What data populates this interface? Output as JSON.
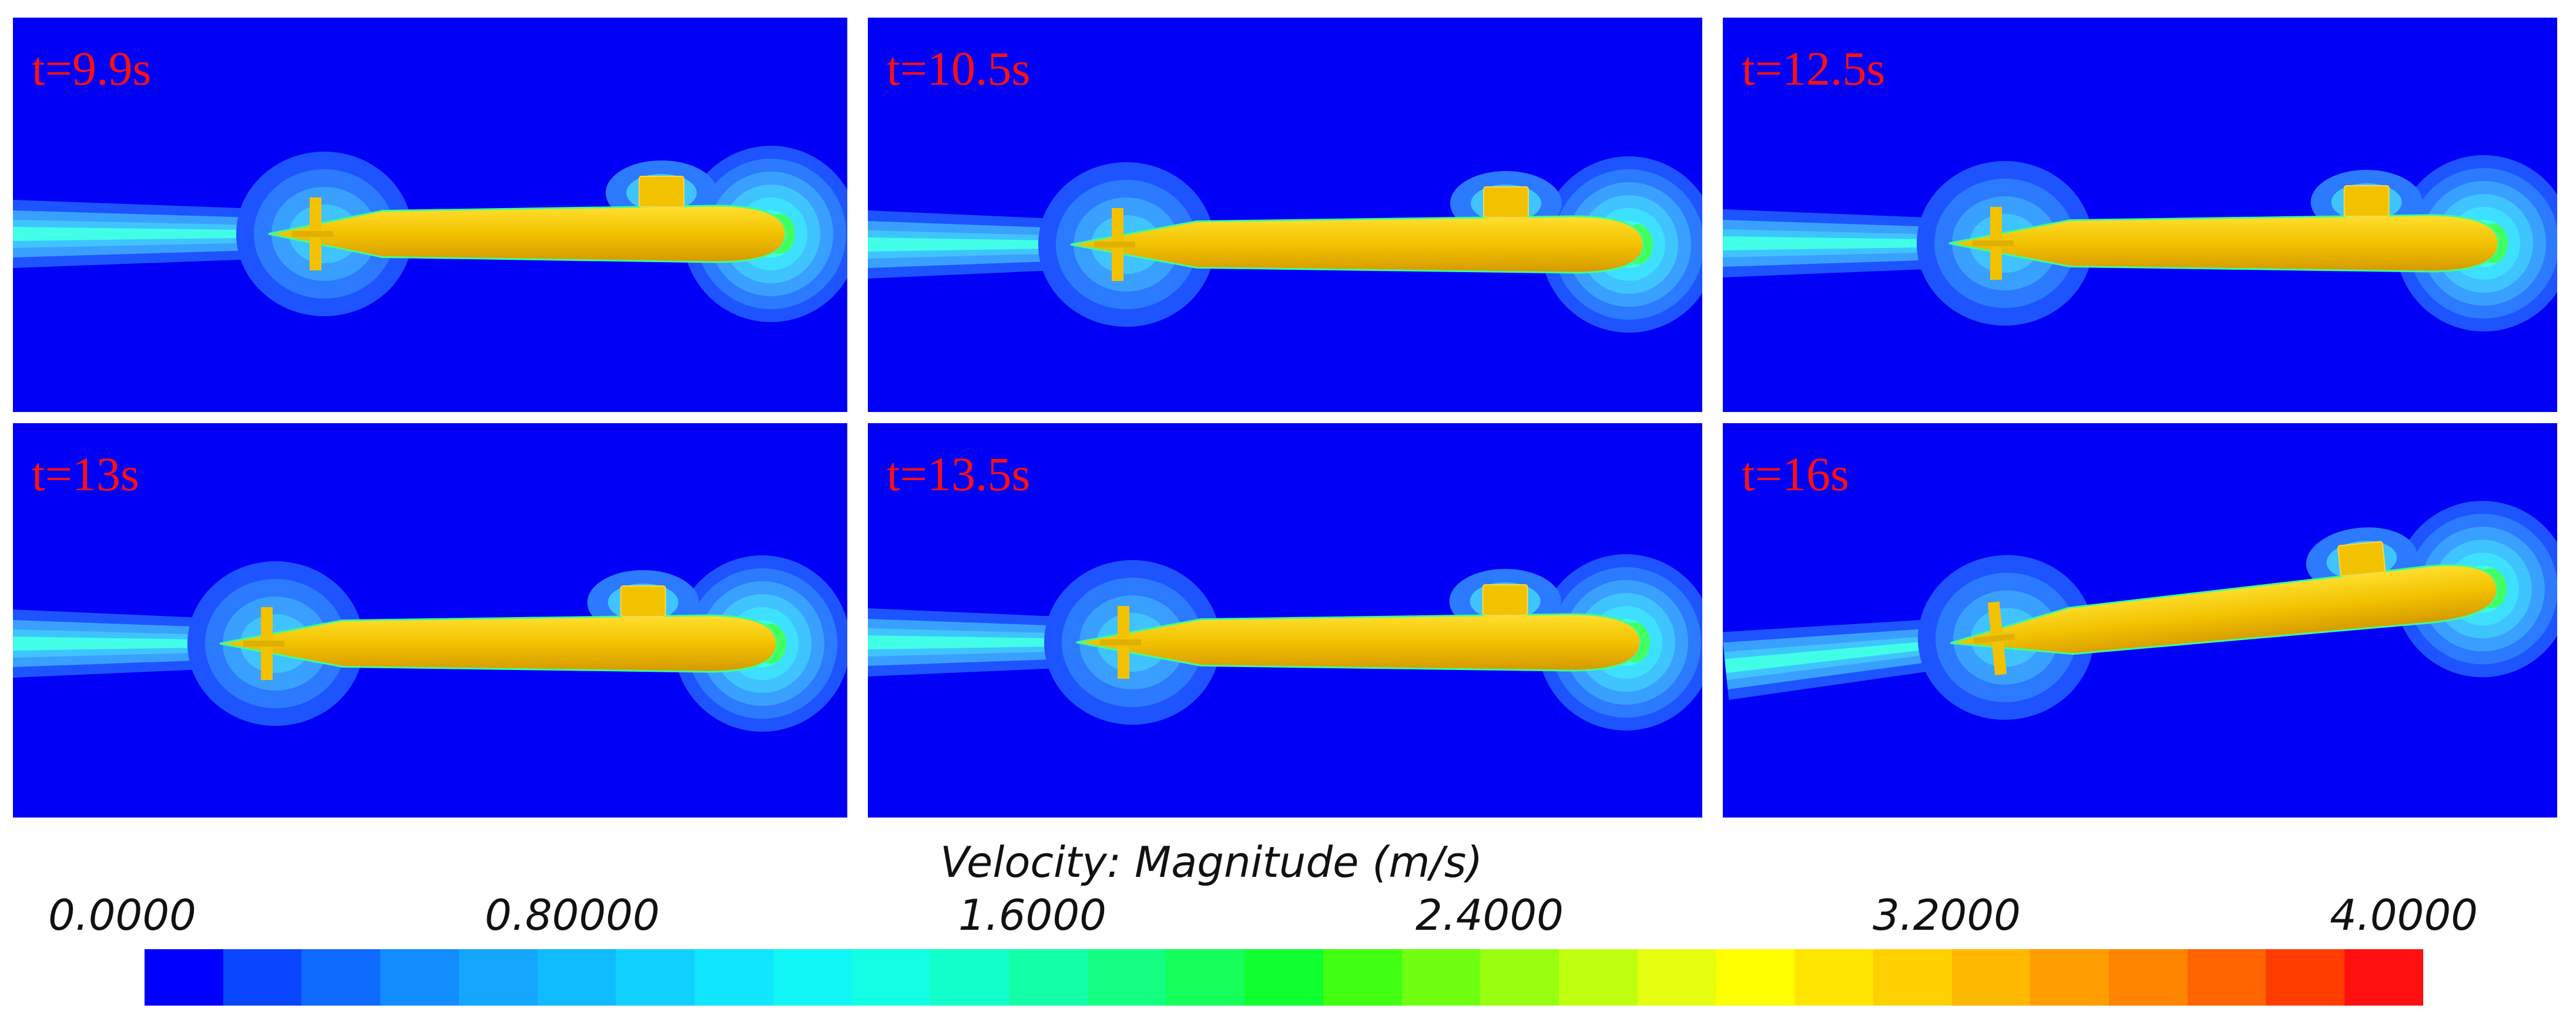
{
  "panels": [
    {
      "id": "p1",
      "time_label": "t=9.9s"
    },
    {
      "id": "p2",
      "time_label": "t=10.5s"
    },
    {
      "id": "p3",
      "time_label": "t=12.5s"
    },
    {
      "id": "p4",
      "time_label": "t=13s"
    },
    {
      "id": "p5",
      "time_label": "t=13.5s"
    },
    {
      "id": "p6",
      "time_label": "t=16s"
    }
  ],
  "colorbar": {
    "title": "Velocity: Magnitude (m/s)",
    "ticks": [
      "0.0000",
      "0.80000",
      "1.6000",
      "2.4000",
      "3.2000",
      "4.0000"
    ],
    "min": 0,
    "max": 4,
    "colors": [
      "#0000ff",
      "#0a46ff",
      "#0f6aff",
      "#128cff",
      "#14a6ff",
      "#10bcff",
      "#10d0ff",
      "#10e6ff",
      "#10f6f6",
      "#12ffe6",
      "#12ffcc",
      "#12ffa8",
      "#14ff82",
      "#14ff5a",
      "#10ff30",
      "#40ff10",
      "#70ff10",
      "#98ff10",
      "#c0ff10",
      "#e6ff10",
      "#ffff00",
      "#ffe600",
      "#ffd000",
      "#ffb800",
      "#ff9e00",
      "#ff8400",
      "#ff6400",
      "#ff3c00",
      "#ff1010"
    ]
  },
  "colors": {
    "background_flow": "#0000f6",
    "hull": "#f2c200"
  }
}
